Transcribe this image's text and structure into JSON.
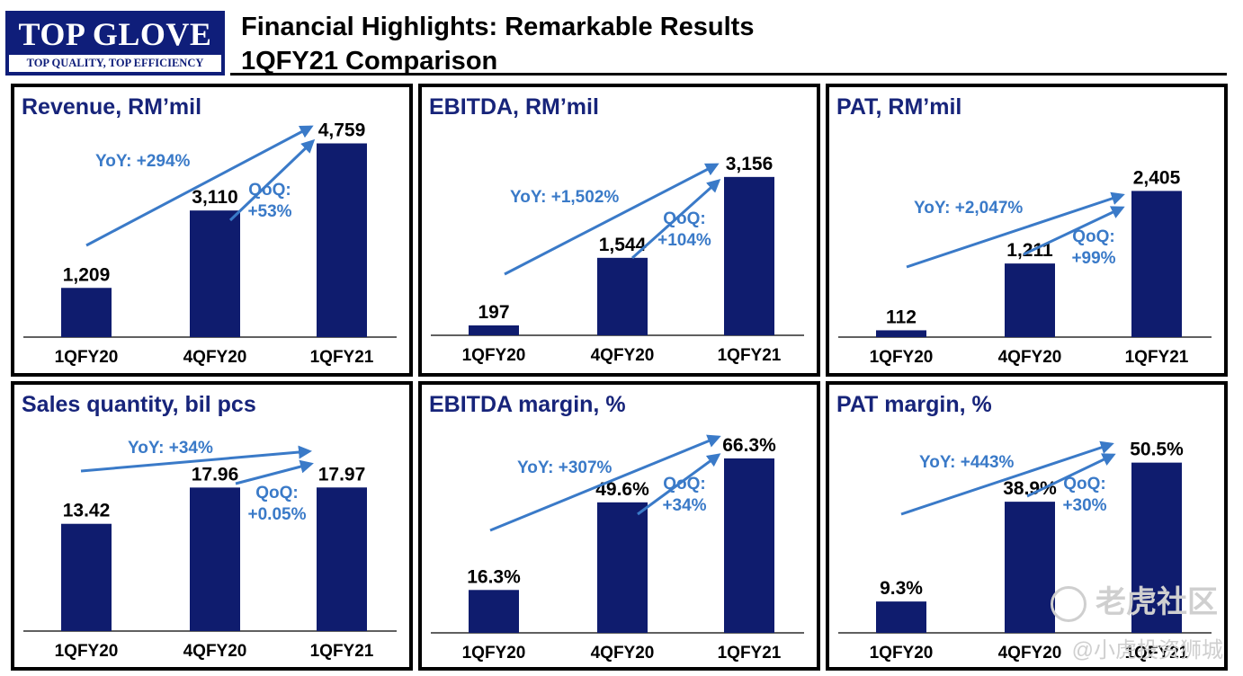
{
  "logo": {
    "name": "TOP GLOVE",
    "tagline": "TOP QUALITY, TOP EFFICIENCY"
  },
  "header": {
    "title_line1": "Financial Highlights: Remarkable Results",
    "title_line2": "1QFY21 Comparison"
  },
  "colors": {
    "bar": "#0f1c6e",
    "title": "#17247a",
    "annotation": "#3a7ac8"
  },
  "watermark": {
    "line1": "老虎社区",
    "line2": "@小虎投资狮城"
  },
  "chart_data": [
    {
      "type": "bar",
      "title": "Revenue, RM’mil",
      "categories": [
        "1QFY20",
        "4QFY20",
        "1QFY21"
      ],
      "values": [
        1209,
        3110,
        4759
      ],
      "labels": [
        "1,209",
        "3,110",
        "4,759"
      ],
      "ylim": [
        0,
        5300
      ],
      "yoy": "YoY: +294%",
      "qoq_title": "QoQ:",
      "qoq_value": "+53%"
    },
    {
      "type": "bar",
      "title": "EBITDA, RM’mil",
      "categories": [
        "1QFY20",
        "4QFY20",
        "1QFY21"
      ],
      "values": [
        197,
        1544,
        3156
      ],
      "labels": [
        "197",
        "1,544",
        "3,156"
      ],
      "ylim": [
        0,
        4300
      ],
      "yoy": "YoY: +1,502%",
      "qoq_title": "QoQ:",
      "qoq_value": "+104%"
    },
    {
      "type": "bar",
      "title": "PAT, RM’mil",
      "categories": [
        "1QFY20",
        "4QFY20",
        "1QFY21"
      ],
      "values": [
        112,
        1211,
        2405
      ],
      "labels": [
        "112",
        "1,211",
        "2,405"
      ],
      "ylim": [
        0,
        3550
      ],
      "yoy": "YoY: +2,047%",
      "qoq_title": "QoQ:",
      "qoq_value": "+99%"
    },
    {
      "type": "bar",
      "title": "Sales quantity, bil pcs",
      "categories": [
        "1QFY20",
        "4QFY20",
        "1QFY21"
      ],
      "values": [
        13.42,
        17.96,
        17.97
      ],
      "labels": [
        "13.42",
        "17.96",
        "17.97"
      ],
      "ylim": [
        0,
        27
      ],
      "yoy": "YoY: +34%",
      "qoq_title": "QoQ:",
      "qoq_value": "+0.05%"
    },
    {
      "type": "bar",
      "title": "EBITDA margin, %",
      "categories": [
        "1QFY20",
        "4QFY20",
        "1QFY21"
      ],
      "values": [
        16.3,
        49.6,
        66.3
      ],
      "labels": [
        "16.3%",
        "49.6%",
        "66.3%"
      ],
      "ylim": [
        0,
        82
      ],
      "yoy": "YoY: +307%",
      "qoq_title": "QoQ:",
      "qoq_value": "+34%"
    },
    {
      "type": "bar",
      "title": "PAT margin, %",
      "categories": [
        "1QFY20",
        "4QFY20",
        "1QFY21"
      ],
      "values": [
        9.3,
        38.9,
        50.5
      ],
      "labels": [
        "9.3%",
        "38.9%",
        "50.5%"
      ],
      "ylim": [
        0,
        64
      ],
      "yoy": "YoY: +443%",
      "qoq_title": "QoQ:",
      "qoq_value": "+30%"
    }
  ]
}
